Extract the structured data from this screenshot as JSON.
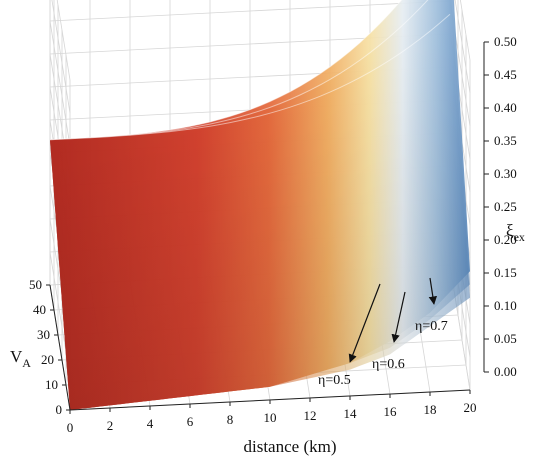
{
  "chart_data": {
    "type": "surface3d",
    "x_axis": {
      "label": "distance (km)",
      "range": [
        0,
        20
      ],
      "ticks": [
        0,
        2,
        4,
        6,
        8,
        10,
        12,
        14,
        16,
        18,
        20
      ]
    },
    "y_axis": {
      "label_main": "V",
      "label_sub": "A",
      "range": [
        0,
        50
      ],
      "ticks": [
        0,
        10,
        20,
        30,
        40,
        50
      ]
    },
    "z_axis": {
      "label_main": "ξ",
      "label_sub": "ex",
      "range": [
        0,
        0.5
      ],
      "ticks": [
        "0.00",
        "0.05",
        "0.10",
        "0.15",
        "0.20",
        "0.25",
        "0.30",
        "0.35",
        "0.40",
        "0.45",
        "0.50"
      ]
    },
    "grid": true,
    "colormap": [
      "#b02a1f",
      "#d9452f",
      "#f08b4f",
      "#fbd38a",
      "#e8eef4",
      "#a9c7e2",
      "#5d8ec4"
    ],
    "series": [
      {
        "name": "η=0.5",
        "front_profile": [
          [
            0,
            0.0
          ],
          [
            10,
            0.02
          ],
          [
            14,
            0.05
          ],
          [
            16,
            0.08
          ],
          [
            18,
            0.12
          ],
          [
            20,
            0.18
          ]
        ],
        "back_max": 0.5
      },
      {
        "name": "η=0.6",
        "front_profile": [
          [
            0,
            0.0
          ],
          [
            10,
            0.02
          ],
          [
            14,
            0.05
          ],
          [
            16,
            0.07
          ],
          [
            18,
            0.11
          ],
          [
            20,
            0.16
          ]
        ],
        "back_max": 0.44
      },
      {
        "name": "η=0.7",
        "front_profile": [
          [
            0,
            0.0
          ],
          [
            10,
            0.02
          ],
          [
            14,
            0.04
          ],
          [
            16,
            0.06
          ],
          [
            18,
            0.1
          ],
          [
            20,
            0.14
          ]
        ],
        "back_max": 0.38
      }
    ],
    "annotations": [
      "η=0.5",
      "η=0.6",
      "η=0.7"
    ]
  }
}
